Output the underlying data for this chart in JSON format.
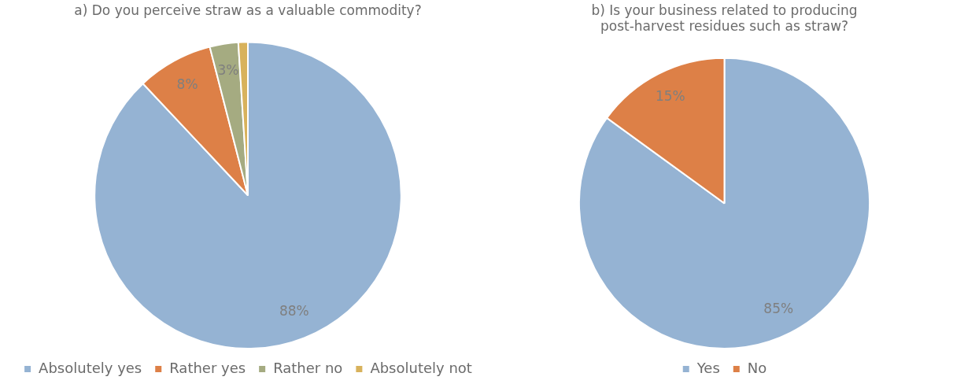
{
  "chart_data": [
    {
      "type": "pie",
      "title": "a) Do you perceive straw as a valuable commodity?",
      "categories": [
        "Absolutely yes",
        "Rather yes",
        "Rather no",
        "Absolutely not"
      ],
      "values": [
        88,
        8,
        3,
        1
      ],
      "value_labels": [
        "88%",
        "8%",
        "3%",
        null
      ],
      "colors": [
        "#95b3d3",
        "#dd8047",
        "#a5ab81",
        "#d8b25c"
      ],
      "legend": "bottom"
    },
    {
      "type": "pie",
      "title": "b) Is your business related to producing post-harvest residues such as straw?",
      "categories": [
        "Yes",
        "No"
      ],
      "values": [
        85,
        15
      ],
      "value_labels": [
        "85%",
        "15%"
      ],
      "colors": [
        "#95b3d3",
        "#dd8047"
      ],
      "legend": "bottom"
    }
  ]
}
